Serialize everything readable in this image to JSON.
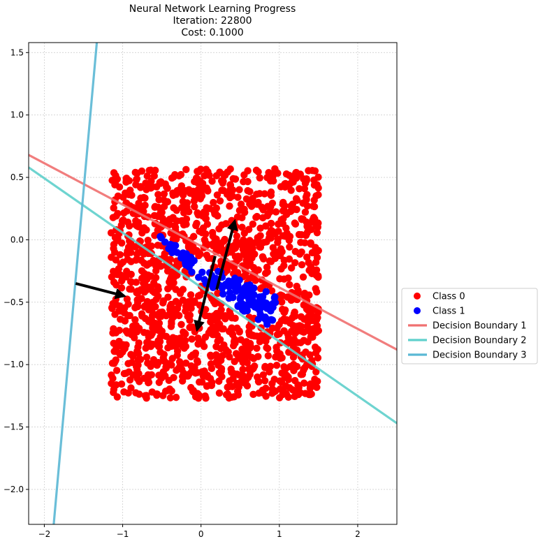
{
  "chart_data": {
    "type": "scatter",
    "title": [
      "Neural Network Learning Progress",
      "Iteration: 22800",
      "Cost: 0.1000"
    ],
    "xlabel": "",
    "ylabel": "",
    "xlim": [
      -2.2,
      2.5
    ],
    "ylim": [
      -2.28,
      1.58
    ],
    "xticks": [
      -2,
      -1,
      0,
      1,
      2
    ],
    "xtick_labels": [
      "−2",
      "−1",
      "0",
      "1",
      "2"
    ],
    "yticks": [
      -2.0,
      -1.5,
      -1.0,
      -0.5,
      0.0,
      0.5,
      1.0,
      1.5
    ],
    "ytick_labels": [
      "−2.0",
      "−1.5",
      "−1.0",
      "−0.5",
      "0.0",
      "0.5",
      "1.0",
      "1.5"
    ],
    "grid": true,
    "legend_position": "center-right-outside",
    "legend": [
      "Class 0",
      "Class 1",
      "Decision Boundary 1",
      "Decision Boundary 2",
      "Decision Boundary 3"
    ],
    "series": [
      {
        "name": "Class 0",
        "kind": "points",
        "color": "#ff0000",
        "region": {
          "x": [
            -1.15,
            1.5
          ],
          "y": [
            -1.27,
            0.57
          ]
        },
        "count": 1500
      },
      {
        "name": "Class 1",
        "kind": "points",
        "color": "#0000ff",
        "region": {
          "polygon": [
            [
              -0.58,
              0.06
            ],
            [
              0.1,
              -0.22
            ],
            [
              0.95,
              -0.44
            ],
            [
              0.98,
              -0.62
            ],
            [
              0.85,
              -0.7
            ],
            [
              0.5,
              -0.55
            ],
            [
              -0.1,
              -0.28
            ],
            [
              -0.5,
              -0.02
            ]
          ]
        },
        "count": 140
      }
    ],
    "boundaries": [
      {
        "name": "Decision Boundary 1",
        "color": "#f07070",
        "points": [
          [
            -2.2,
            0.68
          ],
          [
            2.5,
            -0.88
          ]
        ]
      },
      {
        "name": "Decision Boundary 2",
        "color": "#5fd0cc",
        "points": [
          [
            -2.2,
            0.58
          ],
          [
            2.5,
            -1.47
          ]
        ]
      },
      {
        "name": "Decision Boundary 3",
        "color": "#5ab8d4",
        "points": [
          [
            -1.88,
            -2.28
          ],
          [
            -1.33,
            1.58
          ]
        ]
      }
    ],
    "weight_arrows": [
      {
        "from": [
          -1.6,
          -0.35
        ],
        "to": [
          -0.98,
          -0.45
        ]
      },
      {
        "from": [
          0.18,
          -0.13
        ],
        "to": [
          -0.05,
          -0.72
        ]
      },
      {
        "from": [
          0.2,
          -0.4
        ],
        "to": [
          0.43,
          0.15
        ]
      }
    ]
  }
}
